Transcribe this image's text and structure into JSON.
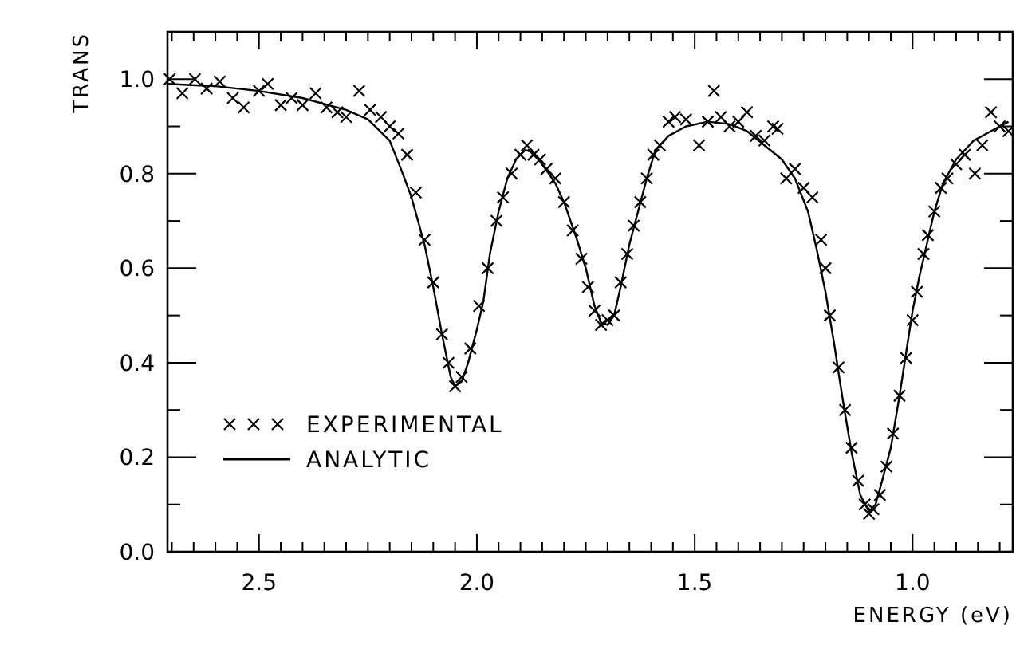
{
  "chart_data": {
    "type": "line",
    "xlabel": "ENERGY (eV)",
    "ylabel": "TRANS",
    "xlim": [
      2.71,
      0.77
    ],
    "ylim": [
      0,
      1.1
    ],
    "xticks": [
      {
        "value": 2.7,
        "label": null
      },
      {
        "value": 2.65,
        "label": null
      },
      {
        "value": 2.6,
        "label": null
      },
      {
        "value": 2.55,
        "label": null
      },
      {
        "value": 2.5,
        "label": "2.5"
      },
      {
        "value": 2.45,
        "label": null
      },
      {
        "value": 2.4,
        "label": null
      },
      {
        "value": 2.35,
        "label": null
      },
      {
        "value": 2.3,
        "label": null
      },
      {
        "value": 2.25,
        "label": null
      },
      {
        "value": 2.2,
        "label": null
      },
      {
        "value": 2.15,
        "label": null
      },
      {
        "value": 2.1,
        "label": null
      },
      {
        "value": 2.05,
        "label": null
      },
      {
        "value": 2.0,
        "label": "2.0"
      },
      {
        "value": 1.95,
        "label": null
      },
      {
        "value": 1.9,
        "label": null
      },
      {
        "value": 1.85,
        "label": null
      },
      {
        "value": 1.8,
        "label": null
      },
      {
        "value": 1.75,
        "label": null
      },
      {
        "value": 1.7,
        "label": null
      },
      {
        "value": 1.65,
        "label": null
      },
      {
        "value": 1.6,
        "label": null
      },
      {
        "value": 1.55,
        "label": null
      },
      {
        "value": 1.5,
        "label": "1.5"
      },
      {
        "value": 1.45,
        "label": null
      },
      {
        "value": 1.4,
        "label": null
      },
      {
        "value": 1.35,
        "label": null
      },
      {
        "value": 1.3,
        "label": null
      },
      {
        "value": 1.25,
        "label": null
      },
      {
        "value": 1.2,
        "label": null
      },
      {
        "value": 1.15,
        "label": null
      },
      {
        "value": 1.1,
        "label": null
      },
      {
        "value": 1.05,
        "label": null
      },
      {
        "value": 1.0,
        "label": "1.0"
      },
      {
        "value": 0.95,
        "label": null
      },
      {
        "value": 0.9,
        "label": null
      },
      {
        "value": 0.85,
        "label": null
      },
      {
        "value": 0.8,
        "label": null
      }
    ],
    "yticks": [
      {
        "value": 0,
        "label": "0.0"
      },
      {
        "value": 0.1,
        "label": null
      },
      {
        "value": 0.2,
        "label": "0.2"
      },
      {
        "value": 0.3,
        "label": null
      },
      {
        "value": 0.4,
        "label": "0.4"
      },
      {
        "value": 0.5,
        "label": null
      },
      {
        "value": 0.6,
        "label": "0.6"
      },
      {
        "value": 0.7,
        "label": null
      },
      {
        "value": 0.8,
        "label": "0.8"
      },
      {
        "value": 0.9,
        "label": null
      },
      {
        "value": 1.0,
        "label": "1.0"
      }
    ],
    "legend": "bottom left",
    "series": [
      {
        "name": "EXPERIMENTAL",
        "type": "scatter",
        "marker": "cross",
        "color": "#000000",
        "x": [
          2.705,
          2.676,
          2.647,
          2.62,
          2.59,
          2.56,
          2.535,
          2.5,
          2.48,
          2.45,
          2.425,
          2.4,
          2.37,
          2.345,
          2.32,
          2.3,
          2.27,
          2.245,
          2.22,
          2.2,
          2.18,
          2.16,
          2.14,
          2.12,
          2.1,
          2.08,
          2.065,
          2.05,
          2.035,
          2.015,
          1.995,
          1.975,
          1.955,
          1.94,
          1.92,
          1.9,
          1.885,
          1.87,
          1.855,
          1.84,
          1.82,
          1.8,
          1.78,
          1.76,
          1.745,
          1.73,
          1.715,
          1.7,
          1.685,
          1.67,
          1.655,
          1.64,
          1.625,
          1.61,
          1.595,
          1.58,
          1.56,
          1.545,
          1.52,
          1.49,
          1.47,
          1.456,
          1.44,
          1.42,
          1.4,
          1.38,
          1.36,
          1.34,
          1.32,
          1.31,
          1.29,
          1.27,
          1.25,
          1.23,
          1.21,
          1.2,
          1.19,
          1.17,
          1.155,
          1.14,
          1.125,
          1.11,
          1.1,
          1.09,
          1.075,
          1.06,
          1.045,
          1.03,
          1.015,
          1.0,
          0.99,
          0.975,
          0.965,
          0.95,
          0.935,
          0.92,
          0.9,
          0.88,
          0.857,
          0.84,
          0.82,
          0.8,
          0.78
        ],
        "values": [
          1.0,
          0.97,
          1.0,
          0.98,
          0.995,
          0.96,
          0.94,
          0.975,
          0.99,
          0.945,
          0.96,
          0.945,
          0.97,
          0.94,
          0.93,
          0.92,
          0.975,
          0.935,
          0.92,
          0.9,
          0.885,
          0.84,
          0.76,
          0.66,
          0.57,
          0.46,
          0.4,
          0.35,
          0.37,
          0.43,
          0.52,
          0.6,
          0.7,
          0.75,
          0.8,
          0.84,
          0.86,
          0.84,
          0.83,
          0.81,
          0.79,
          0.74,
          0.68,
          0.62,
          0.56,
          0.51,
          0.48,
          0.49,
          0.5,
          0.57,
          0.63,
          0.69,
          0.74,
          0.79,
          0.84,
          0.86,
          0.91,
          0.92,
          0.915,
          0.86,
          0.91,
          0.975,
          0.92,
          0.9,
          0.91,
          0.93,
          0.88,
          0.87,
          0.9,
          0.895,
          0.79,
          0.81,
          0.77,
          0.75,
          0.66,
          0.6,
          0.5,
          0.39,
          0.3,
          0.22,
          0.15,
          0.1,
          0.08,
          0.09,
          0.12,
          0.18,
          0.25,
          0.33,
          0.41,
          0.49,
          0.55,
          0.63,
          0.67,
          0.72,
          0.77,
          0.79,
          0.82,
          0.84,
          0.8,
          0.86,
          0.93,
          0.9,
          0.89
        ]
      },
      {
        "name": "ANALYTIC",
        "line_style": "solid",
        "color": "#000000",
        "x": [
          2.71,
          2.6,
          2.5,
          2.4,
          2.3,
          2.25,
          2.2,
          2.17,
          2.15,
          2.12,
          2.1,
          2.08,
          2.06,
          2.05,
          2.035,
          2.02,
          2.0,
          1.985,
          1.97,
          1.95,
          1.93,
          1.91,
          1.89,
          1.87,
          1.85,
          1.82,
          1.8,
          1.77,
          1.75,
          1.73,
          1.715,
          1.7,
          1.685,
          1.67,
          1.65,
          1.63,
          1.61,
          1.59,
          1.56,
          1.52,
          1.47,
          1.42,
          1.38,
          1.34,
          1.3,
          1.27,
          1.24,
          1.22,
          1.2,
          1.18,
          1.16,
          1.14,
          1.12,
          1.1,
          1.085,
          1.07,
          1.05,
          1.03,
          1.015,
          1.0,
          0.985,
          0.965,
          0.95,
          0.93,
          0.9,
          0.86,
          0.82,
          0.78
        ],
        "values": [
          0.99,
          0.985,
          0.975,
          0.96,
          0.935,
          0.915,
          0.87,
          0.8,
          0.75,
          0.65,
          0.56,
          0.46,
          0.37,
          0.35,
          0.36,
          0.4,
          0.47,
          0.53,
          0.63,
          0.72,
          0.79,
          0.83,
          0.85,
          0.845,
          0.82,
          0.78,
          0.74,
          0.66,
          0.6,
          0.52,
          0.485,
          0.48,
          0.5,
          0.56,
          0.65,
          0.72,
          0.79,
          0.85,
          0.88,
          0.9,
          0.91,
          0.905,
          0.89,
          0.86,
          0.83,
          0.79,
          0.72,
          0.64,
          0.55,
          0.44,
          0.32,
          0.21,
          0.12,
          0.085,
          0.1,
          0.15,
          0.22,
          0.33,
          0.42,
          0.51,
          0.58,
          0.66,
          0.72,
          0.78,
          0.83,
          0.87,
          0.89,
          0.91
        ]
      }
    ]
  }
}
